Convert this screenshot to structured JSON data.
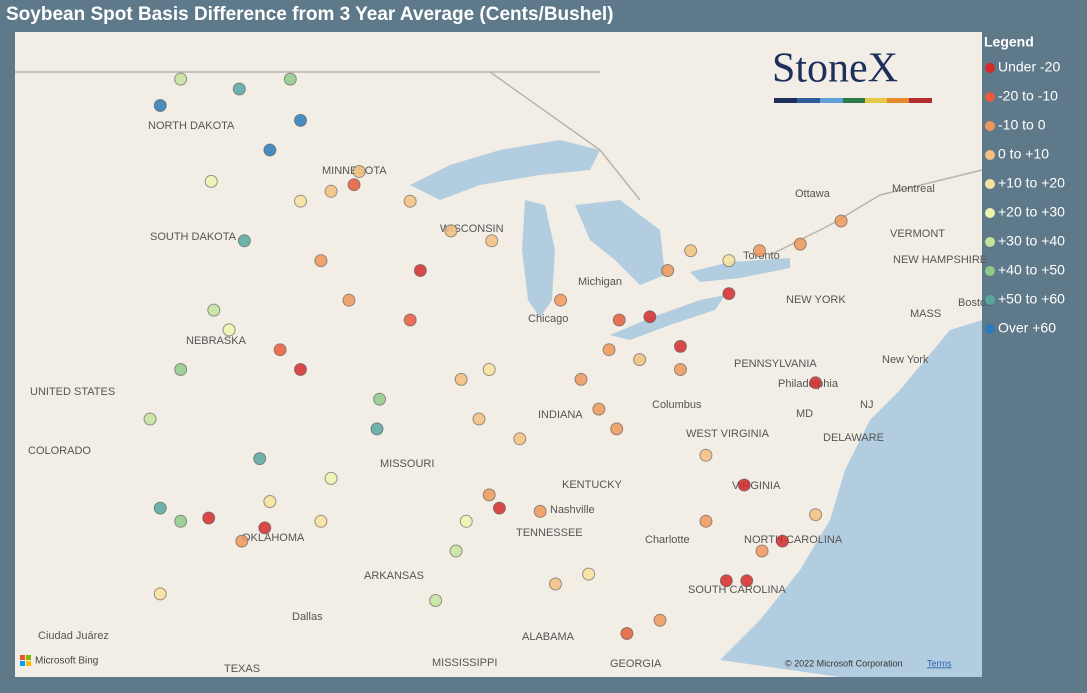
{
  "header": {
    "title": "Soybean Spot Basis Difference from 3 Year Average (Cents/Bushel)"
  },
  "legend": {
    "title": "Legend",
    "items": [
      {
        "label": "Under -20",
        "color": "#d42a2a"
      },
      {
        "label": "-20 to -10",
        "color": "#e65c3a"
      },
      {
        "label": "-10 to 0",
        "color": "#f0965a"
      },
      {
        "label": "0 to +10",
        "color": "#f5bf7e"
      },
      {
        "label": "+10 to +20",
        "color": "#f8e29c"
      },
      {
        "label": "+20 to +30",
        "color": "#eef4b0"
      },
      {
        "label": "+30 to +40",
        "color": "#c6e39c"
      },
      {
        "label": "+40 to +50",
        "color": "#8fca88"
      },
      {
        "label": "+50 to +60",
        "color": "#58a6a0"
      },
      {
        "label": "Over +60",
        "color": "#2c7bb8"
      }
    ]
  },
  "logo": "StoneX",
  "attribution": {
    "provider": "Microsoft Bing",
    "copyright": "© 2022 Microsoft Corporation",
    "terms": "Terms"
  },
  "places": [
    "NORTH DAKOTA",
    "MINNESOTA",
    "SOUTH DAKOTA",
    "NEBRASKA",
    "UNITED STATES",
    "COLORADO",
    "MISSOURI",
    "KENTUCKY",
    "TENNESSEE",
    "ARKANSAS",
    "OKLAHOMA",
    "Dallas",
    "Nashville",
    "Charlotte",
    "NORTH CAROLINA",
    "SOUTH CAROLINA",
    "VIRGINIA",
    "WEST VIRGINIA",
    "PENNSYLVANIA",
    "NEW YORK",
    "Philadelphia",
    "New York",
    "Boston",
    "Ottawa",
    "Montreal",
    "VERMONT",
    "NEW HAMPSHIRE",
    "MASS",
    "DELAWARE",
    "MD",
    "NJ",
    "Columbus",
    "Chicago",
    "INDIANA",
    "WISCONSIN",
    "ALABAMA",
    "MISSISSIPPI",
    "GEORGIA",
    "TEXAS",
    "Ciudad Juárez",
    "Toronto",
    "Michigan"
  ],
  "points": [
    {
      "lon": -97.8,
      "lat": 47.05,
      "bin": 9
    },
    {
      "lon": -102.1,
      "lat": 48.4,
      "bin": 9
    },
    {
      "lon": -96.6,
      "lat": 47.95,
      "bin": 9
    },
    {
      "lon": -101.3,
      "lat": 49.2,
      "bin": 6
    },
    {
      "lon": -99.0,
      "lat": 48.9,
      "bin": 8
    },
    {
      "lon": -97.0,
      "lat": 49.2,
      "bin": 7
    },
    {
      "lon": -100.1,
      "lat": 46.1,
      "bin": 5
    },
    {
      "lon": -96.6,
      "lat": 45.5,
      "bin": 4
    },
    {
      "lon": -95.4,
      "lat": 45.8,
      "bin": 3
    },
    {
      "lon": -94.3,
      "lat": 46.4,
      "bin": 3
    },
    {
      "lon": -92.3,
      "lat": 45.5,
      "bin": 3
    },
    {
      "lon": -90.7,
      "lat": 44.6,
      "bin": 3
    },
    {
      "lon": -89.1,
      "lat": 44.3,
      "bin": 3
    },
    {
      "lon": -91.9,
      "lat": 43.4,
      "bin": 0
    },
    {
      "lon": -92.3,
      "lat": 41.9,
      "bin": 1
    },
    {
      "lon": -94.7,
      "lat": 42.5,
      "bin": 2
    },
    {
      "lon": -95.8,
      "lat": 43.7,
      "bin": 2
    },
    {
      "lon": -96.6,
      "lat": 40.4,
      "bin": 0
    },
    {
      "lon": -97.4,
      "lat": 41.0,
      "bin": 1
    },
    {
      "lon": -99.4,
      "lat": 41.6,
      "bin": 5
    },
    {
      "lon": -101.3,
      "lat": 40.4,
      "bin": 7
    },
    {
      "lon": -102.5,
      "lat": 38.9,
      "bin": 6
    },
    {
      "lon": -98.2,
      "lat": 37.7,
      "bin": 8
    },
    {
      "lon": -97.8,
      "lat": 36.4,
      "bin": 4
    },
    {
      "lon": -98.9,
      "lat": 35.2,
      "bin": 2
    },
    {
      "lon": -98.0,
      "lat": 35.6,
      "bin": 0
    },
    {
      "lon": -100.2,
      "lat": 35.9,
      "bin": 0
    },
    {
      "lon": -102.1,
      "lat": 33.6,
      "bin": 4
    },
    {
      "lon": -95.4,
      "lat": 37.1,
      "bin": 5
    },
    {
      "lon": -93.6,
      "lat": 38.6,
      "bin": 8
    },
    {
      "lon": -93.5,
      "lat": 39.5,
      "bin": 7
    },
    {
      "lon": -90.3,
      "lat": 40.1,
      "bin": 3
    },
    {
      "lon": -89.2,
      "lat": 40.4,
      "bin": 4
    },
    {
      "lon": -89.6,
      "lat": 38.9,
      "bin": 3
    },
    {
      "lon": -88.0,
      "lat": 38.3,
      "bin": 3
    },
    {
      "lon": -86.4,
      "lat": 42.5,
      "bin": 2
    },
    {
      "lon": -85.6,
      "lat": 40.1,
      "bin": 2
    },
    {
      "lon": -84.5,
      "lat": 41.0,
      "bin": 2
    },
    {
      "lon": -84.1,
      "lat": 41.9,
      "bin": 1
    },
    {
      "lon": -82.9,
      "lat": 42.0,
      "bin": 0
    },
    {
      "lon": -83.3,
      "lat": 40.7,
      "bin": 3
    },
    {
      "lon": -84.9,
      "lat": 39.2,
      "bin": 2
    },
    {
      "lon": -84.2,
      "lat": 38.6,
      "bin": 2
    },
    {
      "lon": -82.2,
      "lat": 43.4,
      "bin": 2
    },
    {
      "lon": -79.8,
      "lat": 42.7,
      "bin": 0
    },
    {
      "lon": -81.3,
      "lat": 44.0,
      "bin": 3
    },
    {
      "lon": -79.8,
      "lat": 43.7,
      "bin": 4
    },
    {
      "lon": -78.6,
      "lat": 44.0,
      "bin": 2
    },
    {
      "lon": -77.0,
      "lat": 44.2,
      "bin": 2
    },
    {
      "lon": -75.4,
      "lat": 44.9,
      "bin": 2
    },
    {
      "lon": -76.4,
      "lat": 40.0,
      "bin": 0
    },
    {
      "lon": -81.7,
      "lat": 40.4,
      "bin": 2
    },
    {
      "lon": -88.8,
      "lat": 36.2,
      "bin": 0
    },
    {
      "lon": -89.2,
      "lat": 36.6,
      "bin": 2
    },
    {
      "lon": -90.5,
      "lat": 34.9,
      "bin": 6
    },
    {
      "lon": -91.3,
      "lat": 33.4,
      "bin": 6
    },
    {
      "lon": -90.1,
      "lat": 35.8,
      "bin": 5
    },
    {
      "lon": -87.2,
      "lat": 36.1,
      "bin": 2
    },
    {
      "lon": -86.6,
      "lat": 33.9,
      "bin": 3
    },
    {
      "lon": -85.3,
      "lat": 34.2,
      "bin": 4
    },
    {
      "lon": -83.8,
      "lat": 32.4,
      "bin": 1
    },
    {
      "lon": -82.5,
      "lat": 32.8,
      "bin": 2
    },
    {
      "lon": -80.7,
      "lat": 35.8,
      "bin": 2
    },
    {
      "lon": -77.7,
      "lat": 35.2,
      "bin": 0
    },
    {
      "lon": -78.5,
      "lat": 34.9,
      "bin": 2
    },
    {
      "lon": -79.9,
      "lat": 34.0,
      "bin": 0
    },
    {
      "lon": -79.1,
      "lat": 34.0,
      "bin": 0
    },
    {
      "lon": -76.4,
      "lat": 36.0,
      "bin": 3
    },
    {
      "lon": -79.2,
      "lat": 36.9,
      "bin": 0
    },
    {
      "lon": -80.7,
      "lat": 37.8,
      "bin": 3
    },
    {
      "lon": -81.7,
      "lat": 41.1,
      "bin": 0
    },
    {
      "lon": -95.8,
      "lat": 35.8,
      "bin": 4
    },
    {
      "lon": -101.3,
      "lat": 35.8,
      "bin": 7
    },
    {
      "lon": -102.1,
      "lat": 36.2,
      "bin": 8
    },
    {
      "lon": -98.8,
      "lat": 44.3,
      "bin": 8
    },
    {
      "lon": -100.0,
      "lat": 42.2,
      "bin": 6
    },
    {
      "lon": -94.5,
      "lat": 46.0,
      "bin": 1
    }
  ]
}
